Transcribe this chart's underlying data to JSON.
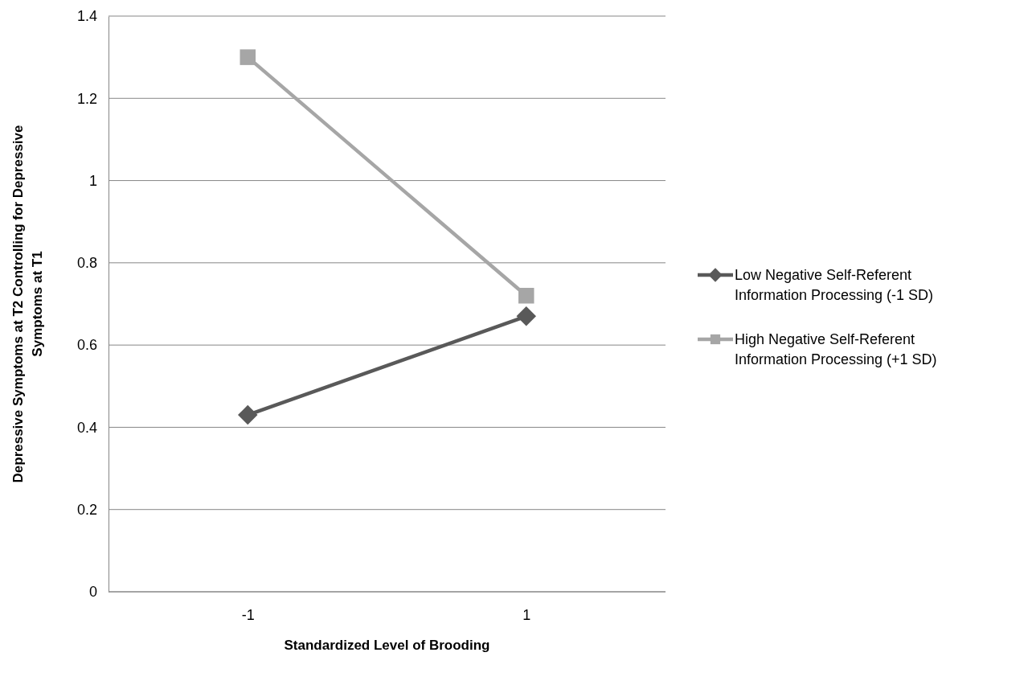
{
  "chart_data": {
    "type": "line",
    "xlabel": "Standardized Level of Brooding",
    "ylabel": "Depressive Symptoms at T2 Controlling for Depressive Symptoms at T1",
    "categories": [
      "-1",
      "1"
    ],
    "series": [
      {
        "name": "Low Negative Self-Referent Information Processing (-1 SD)",
        "color": "#595959",
        "marker": "diamond",
        "values": [
          0.43,
          0.67
        ]
      },
      {
        "name": "High Negative Self-Referent Information Processing (+1 SD)",
        "color": "#a6a6a6",
        "marker": "square",
        "values": [
          1.3,
          0.72
        ]
      }
    ],
    "ylim": [
      0,
      1.4
    ],
    "yticks": [
      0,
      {
        "value": 0.2,
        "label": "0.2"
      },
      {
        "value": 0.4,
        "label": "0.4"
      },
      {
        "value": 0.6,
        "label": "0.6"
      },
      {
        "value": 0.8,
        "label": "0.8"
      },
      1,
      {
        "value": 1.2,
        "label": "1.2"
      },
      {
        "value": 1.4,
        "label": "1.4"
      }
    ],
    "grid": "y",
    "legend": "right"
  }
}
